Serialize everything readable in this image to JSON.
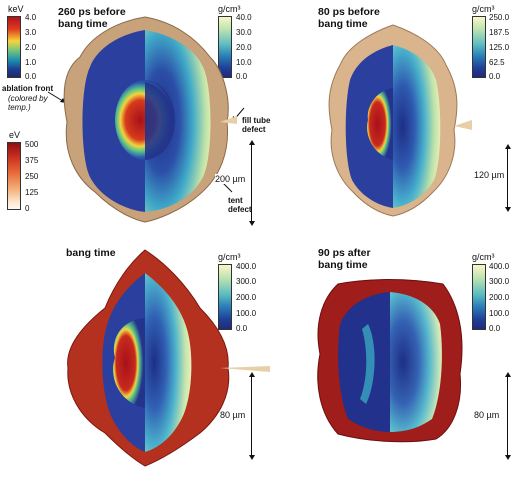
{
  "panels": {
    "p1": {
      "title": "260 ps before\nbang time",
      "scale": "200 µm"
    },
    "p2": {
      "title": "80 ps before\nbang time",
      "scale": "120 µm"
    },
    "p3": {
      "title": "bang time",
      "scale": "80 µm"
    },
    "p4": {
      "title": "90 ps after\nbang time",
      "scale": "80 µm"
    }
  },
  "colorbars": {
    "kev": {
      "unit": "keV",
      "ticks": [
        "4.0",
        "3.0",
        "2.0",
        "1.0",
        "0.0"
      ]
    },
    "ev": {
      "unit": "eV",
      "ticks": [
        "500",
        "375",
        "250",
        "125",
        "0"
      ]
    },
    "dens1": {
      "unit": "g/cm³",
      "ticks": [
        "40.0",
        "30.0",
        "20.0",
        "10.0",
        "0.0"
      ]
    },
    "dens2": {
      "unit": "g/cm³",
      "ticks": [
        "250.0",
        "187.5",
        "125.0",
        "62.5",
        "0.0"
      ]
    },
    "dens3": {
      "unit": "g/cm³",
      "ticks": [
        "400.0",
        "300.0",
        "200.0",
        "100.0",
        "0.0"
      ]
    },
    "dens4": {
      "unit": "g/cm³",
      "ticks": [
        "400.0",
        "300.0",
        "200.0",
        "100.0",
        "0.0"
      ]
    }
  },
  "annotations": {
    "ablation_front": "ablation front",
    "colored_by": "(colored by\ntemp.)",
    "fill_tube": "fill tube\ndefect",
    "tent": "tent\ndefect"
  }
}
